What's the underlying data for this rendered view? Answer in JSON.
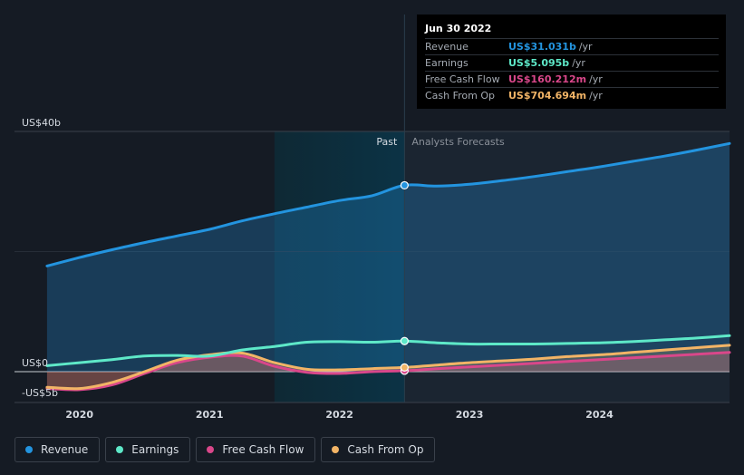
{
  "tooltip": {
    "date": "Jun 30 2022",
    "rows": [
      {
        "label": "Revenue",
        "value": "US$31.031b",
        "unit": "/yr",
        "color": "#2394df"
      },
      {
        "label": "Earnings",
        "value": "US$5.095b",
        "unit": "/yr",
        "color": "#5ee8c8"
      },
      {
        "label": "Free Cash Flow",
        "value": "US$160.212m",
        "unit": "/yr",
        "color": "#d9478a"
      },
      {
        "label": "Cash From Op",
        "value": "US$704.694m",
        "unit": "/yr",
        "color": "#f2b466"
      }
    ]
  },
  "legend": [
    {
      "label": "Revenue",
      "color": "#2394df"
    },
    {
      "label": "Earnings",
      "color": "#5ee8c8"
    },
    {
      "label": "Free Cash Flow",
      "color": "#d9478a"
    },
    {
      "label": "Cash From Op",
      "color": "#f2b466"
    }
  ],
  "chart_data": {
    "type": "line",
    "y_tick_labels": [
      "US$40b",
      "US$0",
      "-US$5b"
    ],
    "y_ticks": [
      40,
      0,
      -5
    ],
    "ylim": [
      -5,
      40
    ],
    "xlim": [
      2019.5,
      2025.0
    ],
    "x_tick_labels": [
      "2020",
      "2021",
      "2022",
      "2023",
      "2024"
    ],
    "x_ticks": [
      2020,
      2021,
      2022,
      2023,
      2024
    ],
    "past_label": "Past",
    "forecast_label": "Analysts Forecasts",
    "divider_x": 2022.5,
    "highlight_start": 2021.5,
    "series": [
      {
        "name": "Revenue",
        "color": "#2394df",
        "fill": true,
        "x": [
          2019.75,
          2020.0,
          2020.25,
          2020.5,
          2020.75,
          2021.0,
          2021.25,
          2021.5,
          2021.75,
          2022.0,
          2022.25,
          2022.5,
          2022.75,
          2023.0,
          2023.25,
          2023.5,
          2023.75,
          2024.0,
          2024.25,
          2024.5,
          2024.75,
          2025.0
        ],
        "y": [
          17.6,
          19.0,
          20.3,
          21.5,
          22.6,
          23.7,
          25.1,
          26.3,
          27.4,
          28.5,
          29.3,
          31.03,
          30.9,
          31.2,
          31.8,
          32.5,
          33.3,
          34.1,
          35.0,
          35.9,
          36.9,
          38.0
        ]
      },
      {
        "name": "Earnings",
        "color": "#5ee8c8",
        "fill": false,
        "x": [
          2019.75,
          2020.0,
          2020.25,
          2020.5,
          2020.75,
          2021.0,
          2021.25,
          2021.5,
          2021.75,
          2022.0,
          2022.25,
          2022.5,
          2022.75,
          2023.0,
          2023.25,
          2023.5,
          2023.75,
          2024.0,
          2024.25,
          2024.5,
          2024.75,
          2025.0
        ],
        "y": [
          1.0,
          1.5,
          2.0,
          2.6,
          2.7,
          2.6,
          3.6,
          4.2,
          4.9,
          5.0,
          4.9,
          5.095,
          4.8,
          4.6,
          4.6,
          4.6,
          4.7,
          4.8,
          5.0,
          5.3,
          5.6,
          6.0
        ]
      },
      {
        "name": "Free Cash Flow",
        "color": "#d9478a",
        "fill": true,
        "x": [
          2019.75,
          2020.0,
          2020.25,
          2020.5,
          2020.75,
          2021.0,
          2021.25,
          2021.5,
          2021.75,
          2022.0,
          2022.25,
          2022.5,
          2022.75,
          2023.0,
          2023.25,
          2023.5,
          2023.75,
          2024.0,
          2024.25,
          2024.5,
          2024.75,
          2025.0
        ],
        "y": [
          -2.8,
          -3.0,
          -2.2,
          -0.3,
          1.5,
          2.4,
          2.6,
          0.9,
          -0.1,
          -0.3,
          0.0,
          0.16,
          0.5,
          0.8,
          1.1,
          1.4,
          1.7,
          2.0,
          2.3,
          2.6,
          2.9,
          3.2
        ]
      },
      {
        "name": "Cash From Op",
        "color": "#f2b466",
        "fill": true,
        "x": [
          2019.75,
          2020.0,
          2020.25,
          2020.5,
          2020.75,
          2021.0,
          2021.25,
          2021.5,
          2021.75,
          2022.0,
          2022.25,
          2022.5,
          2022.75,
          2023.0,
          2023.25,
          2023.5,
          2023.75,
          2024.0,
          2024.25,
          2024.5,
          2024.75,
          2025.0
        ],
        "y": [
          -2.6,
          -2.8,
          -1.8,
          0.0,
          1.9,
          2.8,
          3.1,
          1.5,
          0.4,
          0.3,
          0.5,
          0.7,
          1.1,
          1.5,
          1.8,
          2.1,
          2.5,
          2.8,
          3.2,
          3.6,
          4.0,
          4.4
        ]
      }
    ]
  }
}
